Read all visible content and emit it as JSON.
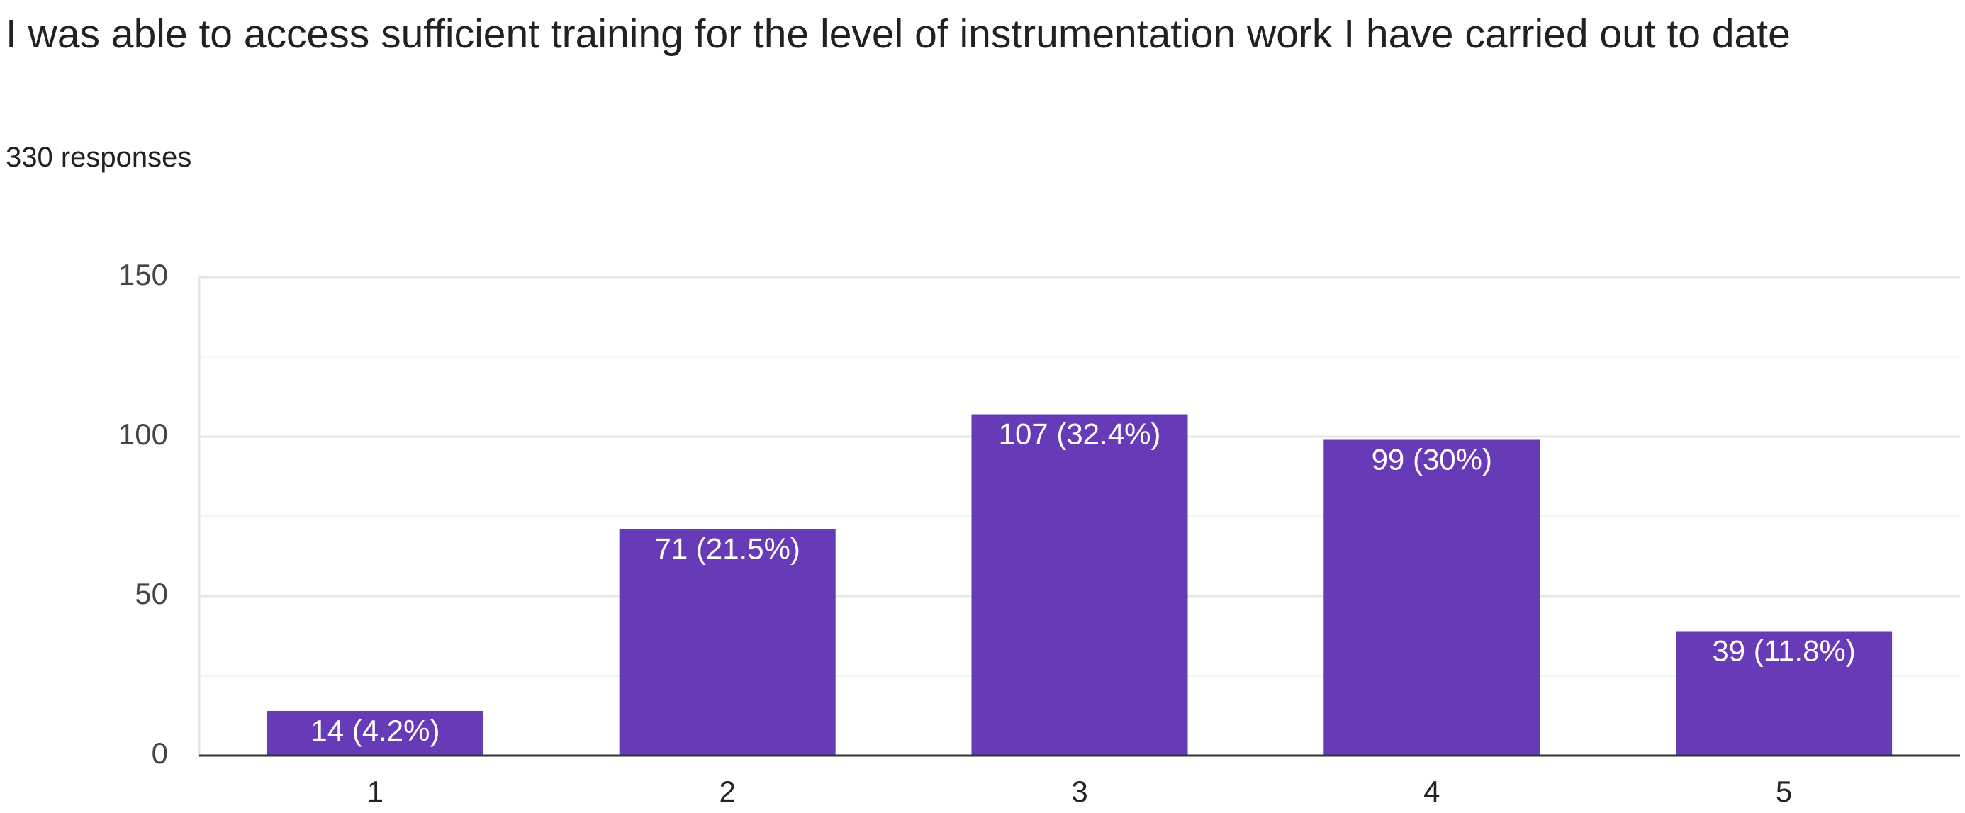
{
  "chart_data": {
    "type": "bar",
    "title": "I was able to access sufficient training for the level of instrumentation work I have carried out to date",
    "subtitle": "330 responses",
    "categories": [
      "1",
      "2",
      "3",
      "4",
      "5"
    ],
    "values": [
      14,
      71,
      107,
      99,
      39
    ],
    "value_labels": [
      "14 (4.2%)",
      "71 (21.5%)",
      "107 (32.4%)",
      "99 (30%)",
      "39 (11.8%)"
    ],
    "color": "#673ab7",
    "ylim": [
      0,
      150
    ],
    "yticks": [
      0,
      50,
      100,
      150
    ],
    "minor_yticks": [
      25,
      75,
      125
    ],
    "grid": true
  }
}
